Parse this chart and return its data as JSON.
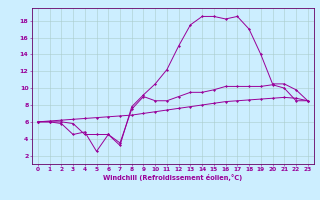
{
  "xlabel": "Windchill (Refroidissement éolien,°C)",
  "background_color": "#cceeff",
  "grid_color": "#aacccc",
  "line_color": "#990099",
  "spine_color": "#660066",
  "xlim": [
    -0.5,
    23.5
  ],
  "ylim": [
    1,
    19.5
  ],
  "yticks": [
    2,
    4,
    6,
    8,
    10,
    12,
    14,
    16,
    18
  ],
  "xticks": [
    0,
    1,
    2,
    3,
    4,
    5,
    6,
    7,
    8,
    9,
    10,
    11,
    12,
    13,
    14,
    15,
    16,
    17,
    18,
    19,
    20,
    21,
    22,
    23
  ],
  "line1_x": [
    0,
    1,
    2,
    3,
    4,
    5,
    6,
    7,
    8,
    9,
    10,
    11,
    12,
    13,
    14,
    15,
    16,
    17,
    18,
    19,
    20,
    21,
    22,
    23
  ],
  "line1_y": [
    6.0,
    6.0,
    6.0,
    5.8,
    4.5,
    4.5,
    4.5,
    3.5,
    7.5,
    9.0,
    8.5,
    8.5,
    9.0,
    9.5,
    9.5,
    9.8,
    10.2,
    10.2,
    10.2,
    10.2,
    10.4,
    10.0,
    8.5,
    8.5
  ],
  "line2_x": [
    0,
    1,
    2,
    3,
    4,
    5,
    6,
    7,
    8,
    9,
    10,
    11,
    12,
    13,
    14,
    15,
    16,
    17,
    18,
    19,
    20,
    21,
    22,
    23
  ],
  "line2_y": [
    6.0,
    6.0,
    5.8,
    4.5,
    4.8,
    2.5,
    4.5,
    3.2,
    7.8,
    9.2,
    10.5,
    12.2,
    15.0,
    17.5,
    18.5,
    18.5,
    18.2,
    18.5,
    17.0,
    14.0,
    10.5,
    10.5,
    9.8,
    8.5
  ],
  "line3_x": [
    0,
    1,
    2,
    3,
    4,
    5,
    6,
    7,
    8,
    9,
    10,
    11,
    12,
    13,
    14,
    15,
    16,
    17,
    18,
    19,
    20,
    21,
    22,
    23
  ],
  "line3_y": [
    6.0,
    6.1,
    6.2,
    6.3,
    6.4,
    6.5,
    6.6,
    6.7,
    6.8,
    7.0,
    7.2,
    7.4,
    7.6,
    7.8,
    8.0,
    8.2,
    8.4,
    8.5,
    8.6,
    8.7,
    8.8,
    8.9,
    8.8,
    8.5
  ]
}
